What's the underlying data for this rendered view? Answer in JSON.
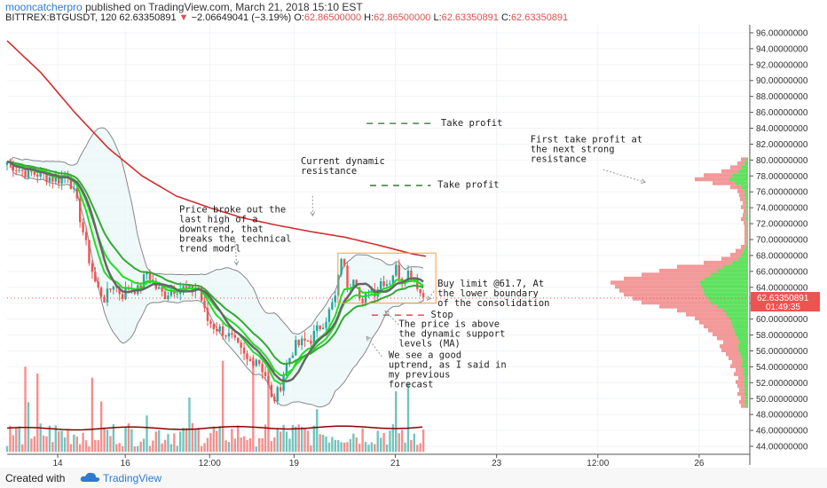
{
  "header": {
    "author": "mooncatcherpro",
    "published": "published on TradingView.com, March 21, 2018 15:10 EST",
    "symbol": "BITTREX:BTGUSDT, 120",
    "last": "62.63350891",
    "change": "−2.06649041 (−3.19%)",
    "o_label": "O:",
    "o_value": "62.86500000",
    "h_label": "H:",
    "h_value": "62.86500000",
    "l_label": "L:",
    "l_value": "62.63350891",
    "c_label": "C:",
    "c_value": "62.63350891"
  },
  "footer": {
    "created": "Created with",
    "brand": "TradingView"
  },
  "price_badge": {
    "price": "62.63350891",
    "time": "01:49:35"
  },
  "colors": {
    "up": "#26a69a",
    "down": "#ef5350",
    "ma200": "#d32f2f",
    "ema": "#22dd22",
    "vpUp": "#44dd44",
    "vpDown": "#f08080",
    "box": "#f0a040"
  },
  "chart_data": {
    "type": "candlestick",
    "symbol": "BITTREX:BTGUSDT",
    "interval": "120",
    "y_range": [
      43,
      97
    ],
    "y_ticks": [
      "44.00000000",
      "46.00000000",
      "48.00000000",
      "50.00000000",
      "52.00000000",
      "54.00000000",
      "56.00000000",
      "58.00000000",
      "60.00000000",
      "62.00000000",
      "64.00000000",
      "66.00000000",
      "68.00000000",
      "70.00000000",
      "72.00000000",
      "74.00000000",
      "76.00000000",
      "78.00000000",
      "80.00000000",
      "82.00000000",
      "84.00000000",
      "86.00000000",
      "88.00000000",
      "90.00000000",
      "92.00000000",
      "94.00000000",
      "96.00000000"
    ],
    "x_ticks": [
      "14",
      "16",
      "12:00",
      "19",
      "21",
      "23",
      "12:00",
      "26"
    ],
    "x_tick_pos": [
      13,
      17,
      22,
      27,
      33,
      39,
      45,
      51
    ],
    "x_range": [
      10,
      54
    ],
    "price_anchors": [
      [
        10,
        79.8
      ],
      [
        11,
        78.5
      ],
      [
        12,
        78.2
      ],
      [
        13,
        77.5
      ],
      [
        13.6,
        78.4
      ],
      [
        14.2,
        74
      ],
      [
        14.8,
        68
      ],
      [
        15.3,
        64
      ],
      [
        15.8,
        62.5
      ],
      [
        16.3,
        64.5
      ],
      [
        16.8,
        63
      ],
      [
        17.3,
        64.2
      ],
      [
        17.8,
        63.5
      ],
      [
        18.3,
        66
      ],
      [
        18.8,
        64
      ],
      [
        19.3,
        63
      ],
      [
        19.8,
        63.8
      ],
      [
        20.3,
        64
      ],
      [
        20.8,
        63.5
      ],
      [
        21.3,
        64.3
      ],
      [
        21.8,
        60
      ],
      [
        22.3,
        59
      ],
      [
        22.8,
        58.5
      ],
      [
        23.3,
        57.5
      ],
      [
        23.8,
        56
      ],
      [
        24.3,
        54.5
      ],
      [
        24.8,
        55.2
      ],
      [
        25.3,
        53
      ],
      [
        25.7,
        49.5
      ],
      [
        26.1,
        51
      ],
      [
        26.5,
        54
      ],
      [
        27,
        56.5
      ],
      [
        27.5,
        57
      ],
      [
        28,
        57.5
      ],
      [
        28.5,
        59
      ],
      [
        29,
        60.5
      ],
      [
        29.5,
        63
      ],
      [
        29.8,
        68
      ],
      [
        30.2,
        64
      ],
      [
        30.6,
        66
      ],
      [
        31,
        61
      ],
      [
        31.4,
        64
      ],
      [
        31.8,
        63.5
      ],
      [
        32.2,
        65
      ],
      [
        32.6,
        64.5
      ],
      [
        33,
        66.5
      ],
      [
        33.4,
        65
      ],
      [
        33.8,
        66
      ],
      [
        34.2,
        65
      ],
      [
        34.5,
        63.2
      ],
      [
        34.8,
        62.6
      ]
    ],
    "ma200_anchors": [
      [
        10,
        95
      ],
      [
        12,
        91
      ],
      [
        14,
        86
      ],
      [
        16,
        81.5
      ],
      [
        18,
        78
      ],
      [
        20,
        75.5
      ],
      [
        22,
        74
      ],
      [
        24,
        72.7
      ],
      [
        26,
        71.8
      ],
      [
        28,
        71
      ],
      [
        30,
        70.3
      ],
      [
        32,
        69.3
      ],
      [
        34,
        68.2
      ],
      [
        34.8,
        67.9
      ]
    ],
    "volume_baseline": 46.2,
    "profile_levels": [
      49,
      49.5,
      50,
      50.5,
      51,
      51.5,
      52,
      52.5,
      53,
      53.5,
      54,
      54.5,
      55,
      55.5,
      56,
      56.5,
      57,
      57.5,
      58,
      58.5,
      59,
      59.5,
      60,
      60.5,
      61,
      61.5,
      62,
      62.5,
      63,
      63.5,
      64,
      64.5,
      65,
      65.5,
      66,
      66.5,
      67,
      67.5,
      68,
      68.5,
      69,
      69.5,
      70,
      70.5,
      71,
      71.5,
      72,
      72.5,
      73,
      73.5,
      74,
      74.5,
      75,
      75.5,
      76,
      76.5,
      77,
      77.5,
      78,
      78.5,
      79,
      79.5,
      80
    ],
    "profile_sizes": [
      8,
      10,
      8,
      12,
      10,
      12,
      14,
      11,
      16,
      14,
      20,
      18,
      22,
      25,
      30,
      32,
      28,
      35,
      40,
      45,
      50,
      55,
      60,
      70,
      80,
      100,
      120,
      130,
      140,
      145,
      150,
      155,
      140,
      120,
      100,
      80,
      50,
      30,
      20,
      14,
      8,
      4,
      4,
      4,
      4,
      4,
      5,
      8,
      6,
      5,
      8,
      6,
      9,
      10,
      12,
      20,
      40,
      60,
      50,
      30,
      20,
      12,
      8
    ],
    "annotations": [
      {
        "text": [
          "Price broke out the",
          "last high of a",
          "downtrend, that",
          "breaks the technical",
          "trend modrl"
        ]
      },
      {
        "text": [
          "Current dynamic",
          "resistance"
        ]
      },
      {
        "text": [
          "Take profit"
        ]
      },
      {
        "text": [
          "Take profit"
        ]
      },
      {
        "text": [
          "First take profit at",
          "the next strong",
          "resistance"
        ]
      },
      {
        "text": [
          "Buy limit @61.7, At",
          "the lower boundary",
          "of the consolidation"
        ]
      },
      {
        "text": [
          "Stop"
        ]
      },
      {
        "text": [
          "The price is above",
          "the dynamic support",
          "levels (MA)"
        ]
      },
      {
        "text": [
          "We see a good",
          "uptrend, as I said in",
          "my previous",
          "forecast"
        ]
      }
    ]
  }
}
